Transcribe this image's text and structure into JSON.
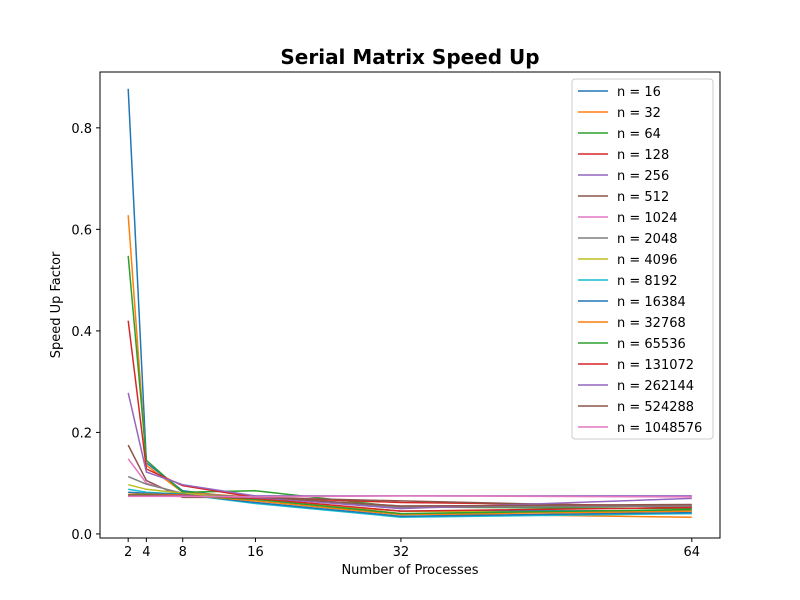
{
  "chart_data": {
    "type": "line",
    "title": "Serial Matrix Speed Up",
    "xlabel": "Number of Processes",
    "ylabel": "Speed Up Factor",
    "x": [
      2,
      4,
      8,
      16,
      32,
      64
    ],
    "xticks": [
      2,
      4,
      8,
      16,
      32,
      64
    ],
    "xlim": [
      -1.1,
      67.1
    ],
    "ylim": [
      -0.008,
      0.91
    ],
    "yticks": [
      0.0,
      0.2,
      0.4,
      0.6,
      0.8
    ],
    "ytick_labels": [
      "0.0",
      "0.2",
      "0.4",
      "0.6",
      "0.8"
    ],
    "grid": false,
    "legend_position": "top-right",
    "series": [
      {
        "name": "n = 16",
        "color": "#1f77b4",
        "values": [
          0.877,
          0.14,
          0.085,
          0.068,
          0.045,
          0.046
        ]
      },
      {
        "name": "n = 32",
        "color": "#ff7f0e",
        "values": [
          0.628,
          0.135,
          0.082,
          0.072,
          0.04,
          0.033
        ]
      },
      {
        "name": "n = 64",
        "color": "#2ca02c",
        "values": [
          0.548,
          0.145,
          0.082,
          0.085,
          0.053,
          0.05
        ]
      },
      {
        "name": "n = 128",
        "color": "#d62728",
        "values": [
          0.42,
          0.128,
          0.095,
          0.072,
          0.062,
          0.055
        ]
      },
      {
        "name": "n = 256",
        "color": "#9467bd",
        "values": [
          0.278,
          0.122,
          0.097,
          0.075,
          0.075,
          0.075
        ]
      },
      {
        "name": "n = 512",
        "color": "#8c564b",
        "values": [
          0.175,
          0.105,
          0.072,
          0.072,
          0.065,
          0.052
        ]
      },
      {
        "name": "n = 1024",
        "color": "#e377c2",
        "values": [
          0.148,
          0.1,
          0.078,
          0.072,
          0.055,
          0.055
        ]
      },
      {
        "name": "n = 2048",
        "color": "#7f7f7f",
        "values": [
          0.113,
          0.098,
          0.08,
          0.072,
          0.052,
          0.055
        ]
      },
      {
        "name": "n = 4096",
        "color": "#bcbd22",
        "values": [
          0.097,
          0.088,
          0.08,
          0.068,
          0.045,
          0.04
        ]
      },
      {
        "name": "n = 8192",
        "color": "#17becf",
        "values": [
          0.088,
          0.082,
          0.078,
          0.06,
          0.033,
          0.04
        ]
      },
      {
        "name": "n = 16384",
        "color": "#1f77b4",
        "values": [
          0.082,
          0.08,
          0.078,
          0.062,
          0.035,
          0.042
        ]
      },
      {
        "name": "n = 32768",
        "color": "#ff7f0e",
        "values": [
          0.078,
          0.078,
          0.077,
          0.065,
          0.038,
          0.045
        ]
      },
      {
        "name": "n = 65536",
        "color": "#2ca02c",
        "values": [
          0.077,
          0.077,
          0.076,
          0.068,
          0.04,
          0.048
        ]
      },
      {
        "name": "n = 131072",
        "color": "#d62728",
        "values": [
          0.076,
          0.076,
          0.076,
          0.07,
          0.045,
          0.052
        ]
      },
      {
        "name": "n = 262144",
        "color": "#9467bd",
        "values": [
          0.075,
          0.075,
          0.075,
          0.072,
          0.05,
          0.07
        ]
      },
      {
        "name": "n = 524288",
        "color": "#8c564b",
        "values": [
          0.075,
          0.075,
          0.074,
          0.073,
          0.055,
          0.058
        ]
      },
      {
        "name": "n = 1048576",
        "color": "#e377c2",
        "values": [
          0.074,
          0.074,
          0.074,
          0.073,
          0.075,
          0.073
        ]
      }
    ]
  }
}
